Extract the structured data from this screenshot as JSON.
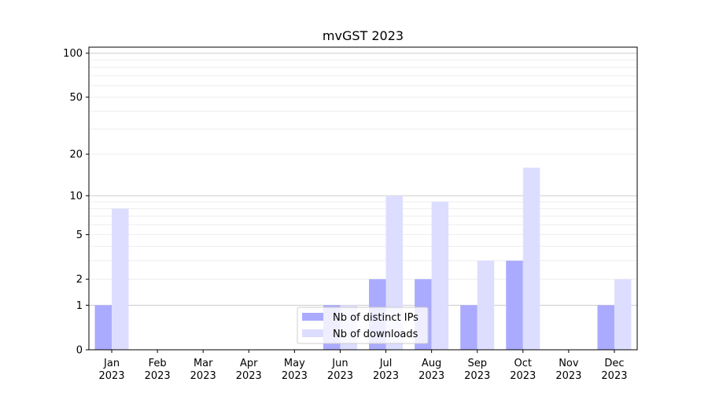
{
  "chart_data": {
    "type": "bar",
    "title": "mvGST 2023",
    "xlabel": "",
    "ylabel": "",
    "y_scale": "log1p",
    "ylim": [
      0,
      110
    ],
    "y_ticks": [
      0,
      1,
      2,
      5,
      10,
      20,
      50,
      100
    ],
    "categories": [
      {
        "month": "Jan",
        "year": "2023"
      },
      {
        "month": "Feb",
        "year": "2023"
      },
      {
        "month": "Mar",
        "year": "2023"
      },
      {
        "month": "Apr",
        "year": "2023"
      },
      {
        "month": "May",
        "year": "2023"
      },
      {
        "month": "Jun",
        "year": "2023"
      },
      {
        "month": "Jul",
        "year": "2023"
      },
      {
        "month": "Aug",
        "year": "2023"
      },
      {
        "month": "Sep",
        "year": "2023"
      },
      {
        "month": "Oct",
        "year": "2023"
      },
      {
        "month": "Nov",
        "year": "2023"
      },
      {
        "month": "Dec",
        "year": "2023"
      }
    ],
    "series": [
      {
        "name": "Nb of distinct IPs",
        "color": "#aaaaff",
        "values": [
          1,
          0,
          0,
          0,
          0,
          1,
          2,
          2,
          1,
          3,
          0,
          1
        ]
      },
      {
        "name": "Nb of downloads",
        "color": "#ddddff",
        "values": [
          8,
          0,
          0,
          0,
          0,
          1,
          10,
          9,
          3,
          16,
          0,
          2
        ]
      }
    ],
    "grid": true,
    "legend_position": "bottom-center"
  }
}
